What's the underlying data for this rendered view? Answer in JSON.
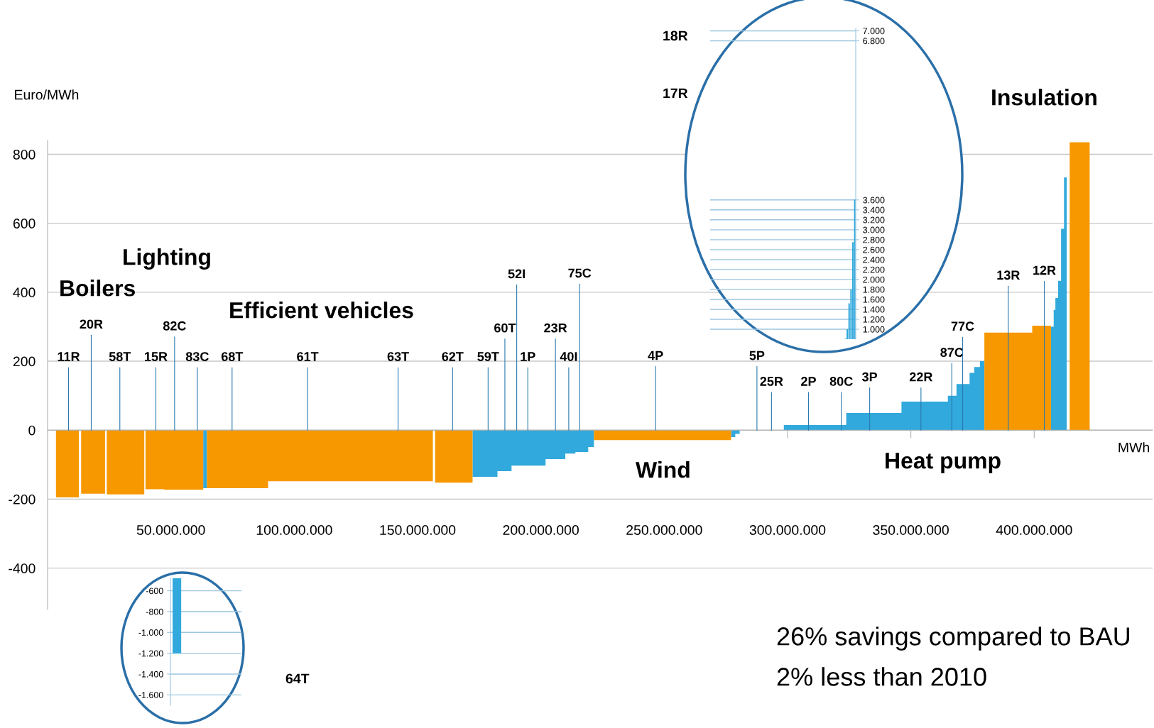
{
  "chart_data": [
    {
      "type": "area",
      "ylabel": "Euro/MWh",
      "xlabel": "MWh",
      "xlim": [
        0,
        448000000
      ],
      "ylim": [
        -520,
        840
      ],
      "yticks": [
        -400,
        -200,
        0,
        200,
        400,
        600,
        800
      ],
      "xticks": [
        {
          "value": 50000000,
          "label": "50.000.000"
        },
        {
          "value": 100000000,
          "label": "100.000.000"
        },
        {
          "value": 150000000,
          "label": "150.000.000"
        },
        {
          "value": 200000000,
          "label": "200.000.000"
        },
        {
          "value": 250000000,
          "label": "250.000.000"
        },
        {
          "value": 300000000,
          "label": "300.000.000"
        },
        {
          "value": 350000000,
          "label": "350.000.000"
        },
        {
          "value": 400000000,
          "label": "400.000.000"
        }
      ],
      "grid": "y",
      "series": [
        {
          "color": "#31a9dc",
          "x": [
            63100000,
            64600000,
            64600000,
            172300000,
            172300000,
            182400000,
            182400000,
            188100000,
            188100000,
            201900000,
            201900000,
            209900000,
            209900000,
            214000000,
            214000000,
            219200000,
            219200000,
            221500000,
            221500000,
            277100000,
            277100000,
            278800000,
            278800000,
            280600000,
            280600000,
            298500000,
            298500000,
            323800000,
            323800000,
            346200000,
            346200000,
            365000000,
            365000000,
            368500000,
            368500000,
            373800000,
            373800000,
            375700000,
            375700000,
            378000000,
            378000000,
            379800000,
            379800000,
            406800000,
            406800000,
            407900000,
            407900000,
            408600000,
            408600000,
            409700000,
            409700000,
            410900000,
            410900000,
            412100000,
            412100000,
            413200000
          ],
          "values": [
            -168,
            -168,
            0,
            0,
            -135,
            -135,
            -119,
            -119,
            -103,
            -103,
            -84,
            -84,
            -68,
            -68,
            -63,
            -63,
            -49,
            -49,
            0,
            0,
            -20,
            -20,
            -11,
            -11,
            0,
            0,
            15,
            15,
            50,
            50,
            83,
            83,
            100,
            100,
            134,
            134,
            166,
            166,
            183,
            183,
            200,
            200,
            0,
            0,
            300,
            300,
            349,
            349,
            383,
            383,
            433,
            433,
            584,
            584,
            733,
            733
          ]
        },
        {
          "color": "#f79800",
          "x": [
            3400000,
            12700000,
            12700000,
            13600000,
            13600000,
            23300000,
            23300000,
            24000000,
            24000000,
            39200000,
            39200000,
            39700000,
            39700000,
            47300000,
            47300000,
            63100000,
            63100000,
            64600000,
            64600000,
            89400000,
            89400000,
            156200000,
            156200000,
            157100000,
            157100000,
            172300000,
            172300000,
            221500000,
            221500000,
            277100000,
            277100000,
            379800000,
            379800000,
            399200000,
            399200000,
            406800000,
            406800000,
            414400000,
            414400000,
            422500000
          ],
          "values": [
            -195,
            -195,
            0,
            0,
            -184,
            -184,
            0,
            0,
            -186,
            -186,
            0,
            0,
            -171,
            -171,
            -173,
            -173,
            0,
            0,
            -168,
            -168,
            -148,
            -148,
            0,
            0,
            -152,
            -152,
            0,
            0,
            -29,
            -29,
            0,
            0,
            283,
            283,
            303,
            303,
            0,
            0,
            835,
            835
          ]
        }
      ],
      "annotations": [
        {
          "text": "11R",
          "x": 8500000,
          "y": 0
        },
        {
          "text": "20R",
          "x": 17700000,
          "y": 0
        },
        {
          "text": "58T",
          "x": 29300000,
          "y": 0
        },
        {
          "text": "15R",
          "x": 43900000,
          "y": 0
        },
        {
          "text": "82C",
          "x": 51500000,
          "y": 0
        },
        {
          "text": "83C",
          "x": 60700000,
          "y": 0
        },
        {
          "text": "68T",
          "x": 74800000,
          "y": 0
        },
        {
          "text": "61T",
          "x": 105400000,
          "y": 0
        },
        {
          "text": "63T",
          "x": 142100000,
          "y": 0
        },
        {
          "text": "62T",
          "x": 164200000,
          "y": 0
        },
        {
          "text": "59T",
          "x": 178600000,
          "y": 0
        },
        {
          "text": "60T",
          "x": 185400000,
          "y": 0
        },
        {
          "text": "52I",
          "x": 190200000,
          "y": 0
        },
        {
          "text": "1P",
          "x": 194700000,
          "y": 0
        },
        {
          "text": "23R",
          "x": 205900000,
          "y": 0
        },
        {
          "text": "40I",
          "x": 211300000,
          "y": 0
        },
        {
          "text": "75C",
          "x": 215700000,
          "y": 0
        },
        {
          "text": "4P",
          "x": 246500000,
          "y": 0
        },
        {
          "text": "5P",
          "x": 287600000,
          "y": 0
        },
        {
          "text": "25R",
          "x": 293500000,
          "y": 0
        },
        {
          "text": "2P",
          "x": 308500000,
          "y": 0
        },
        {
          "text": "80C",
          "x": 321800000,
          "y": 0
        },
        {
          "text": "3P",
          "x": 333300000,
          "y": 0
        },
        {
          "text": "22R",
          "x": 354100000,
          "y": 0
        },
        {
          "text": "87C",
          "x": 366600000,
          "y": 0
        },
        {
          "text": "77C",
          "x": 371000000,
          "y": 0
        },
        {
          "text": "13R",
          "x": 389500000,
          "y": 0
        },
        {
          "text": "12R",
          "x": 404100000,
          "y": 0
        },
        "Boilers",
        "Lighting",
        "Efficient vehicles",
        "Wind",
        "Heat pump",
        "Insulation",
        "26% savings compared to BAU",
        "2% less than 2010"
      ]
    },
    {
      "type": "bar",
      "categories": [
        null,
        null,
        null,
        null,
        null,
        null
      ],
      "series": [
        {
          "color": "#31a9dc",
          "values": [
            810,
            1000,
            1520,
            1800,
            2750,
            3610
          ]
        }
      ],
      "ylim": [
        800,
        7050
      ],
      "yticks": [
        {
          "value": 1000,
          "label": "1.000"
        },
        {
          "value": 1200,
          "label": "1.200"
        },
        {
          "value": 1400,
          "label": "1.400"
        },
        {
          "value": 1600,
          "label": "1.600"
        },
        {
          "value": 1800,
          "label": "1.800"
        },
        {
          "value": 2000,
          "label": "2.000"
        },
        {
          "value": 2200,
          "label": "2.200"
        },
        {
          "value": 2400,
          "label": "2.400"
        },
        {
          "value": 2600,
          "label": "2.600"
        },
        {
          "value": 2800,
          "label": "2.800"
        },
        {
          "value": 3000,
          "label": "3.000"
        },
        {
          "value": 3200,
          "label": "3.200"
        },
        {
          "value": 3400,
          "label": "3.400"
        },
        {
          "value": 3600,
          "label": "3.600"
        },
        {
          "value": 6800,
          "label": "6.800"
        },
        {
          "value": 7000,
          "label": "7.000"
        }
      ],
      "grid": "y",
      "tick_labels": "y",
      "annotations": [
        "18R",
        "17R"
      ]
    },
    {
      "type": "bar",
      "categories": [
        null
      ],
      "series": [
        {
          "color": "#31a9dc",
          "values": [
            -1200
          ]
        }
      ],
      "ylim": [
        -1700,
        -480
      ],
      "yticks": [
        -600,
        -800,
        {
          "value": -1000,
          "label": "-1.000"
        },
        {
          "value": -1200,
          "label": "-1.200"
        },
        {
          "value": -1400,
          "label": "-1.400"
        },
        {
          "value": -1600,
          "label": "-1.600"
        }
      ],
      "grid": "y",
      "tick_labels": "y",
      "annotations": [
        "64T"
      ]
    }
  ]
}
